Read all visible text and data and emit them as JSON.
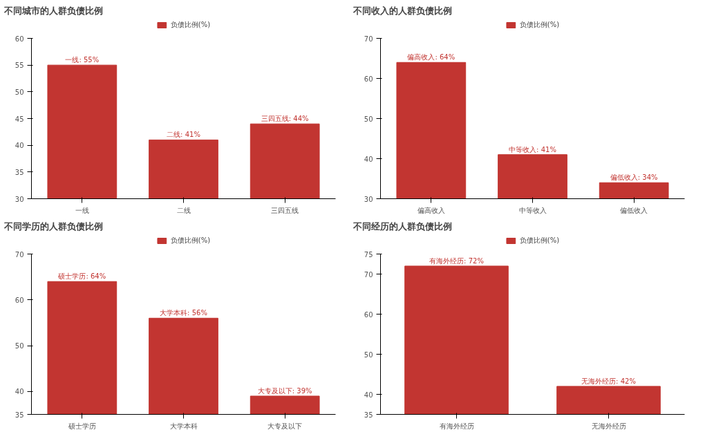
{
  "chart_data": [
    {
      "type": "bar",
      "title": "不同城市的人群负债比例",
      "categories": [
        "一线",
        "二线",
        "三四五线"
      ],
      "series": [
        {
          "name": "负债比例(%)",
          "color": "#c23531",
          "values": [
            55,
            41,
            44
          ],
          "value_labels": [
            "一线: 55%",
            "二线: 41%",
            "三四五线: 44%"
          ]
        }
      ],
      "ylim": [
        30,
        60
      ],
      "yticks": [
        30,
        35,
        40,
        45,
        50,
        55,
        60
      ],
      "grid": false,
      "legend": "top"
    },
    {
      "type": "bar",
      "title": "不同收入的人群负债比例",
      "categories": [
        "偏高收入",
        "中等收入",
        "偏低收入"
      ],
      "series": [
        {
          "name": "负债比例(%)",
          "color": "#c23531",
          "values": [
            64,
            41,
            34
          ],
          "value_labels": [
            "偏高收入: 64%",
            "中等收入: 41%",
            "偏低收入: 34%"
          ]
        }
      ],
      "ylim": [
        30,
        70
      ],
      "yticks": [
        30,
        40,
        50,
        60,
        70
      ],
      "grid": false,
      "legend": "top"
    },
    {
      "type": "bar",
      "title": "不同学历的人群负债比例",
      "categories": [
        "硕士学历",
        "大学本科",
        "大专及以下"
      ],
      "series": [
        {
          "name": "负债比例(%)",
          "color": "#c23531",
          "values": [
            64,
            56,
            39
          ],
          "value_labels": [
            "硕士学历: 64%",
            "大学本科: 56%",
            "大专及以下: 39%"
          ]
        }
      ],
      "ylim": [
        35,
        70
      ],
      "yticks": [
        35,
        40,
        50,
        60,
        70
      ],
      "grid": false,
      "legend": "top"
    },
    {
      "type": "bar",
      "title": "不同经历的人群负债比例",
      "categories": [
        "有海外经历",
        "无海外经历"
      ],
      "series": [
        {
          "name": "负债比例(%)",
          "color": "#c23531",
          "values": [
            72,
            42
          ],
          "value_labels": [
            "有海外经历: 72%",
            "无海外经历: 42%"
          ]
        }
      ],
      "ylim": [
        35,
        75
      ],
      "yticks": [
        35,
        40,
        50,
        60,
        70,
        75
      ],
      "grid": false,
      "legend": "top"
    }
  ]
}
